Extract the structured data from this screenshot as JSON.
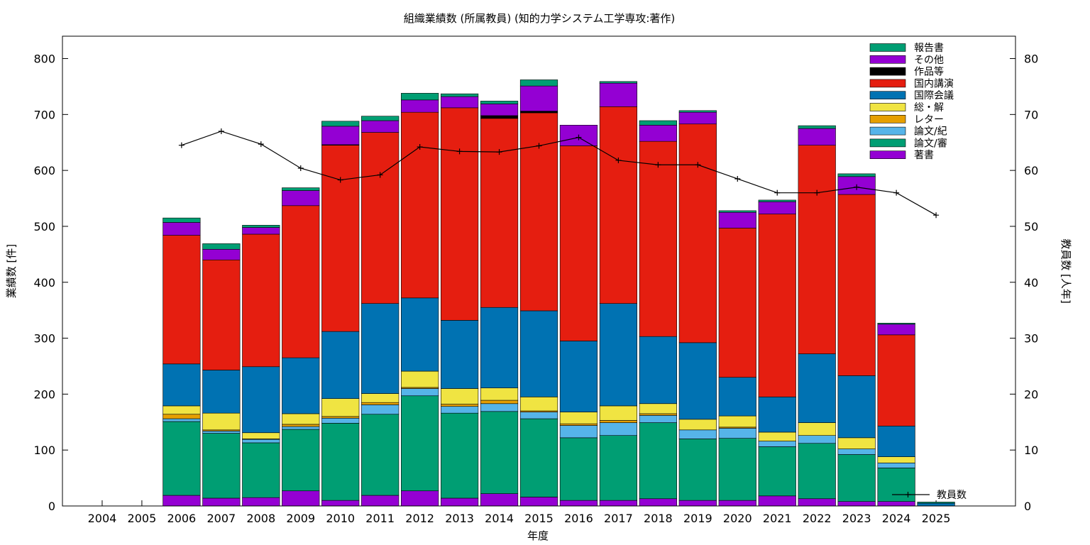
{
  "chart_data": {
    "type": "bar",
    "stacked": true,
    "title": "組織業績数 (所属教員) (知的力学システム工学専攻:著作)",
    "xlabel": "年度",
    "ylabel": "業績数 [件]",
    "y2label": "教員数 [人年]",
    "ylim": [
      0,
      840
    ],
    "y2lim": [
      0,
      84
    ],
    "yticks": [
      0,
      100,
      200,
      300,
      400,
      500,
      600,
      700,
      800
    ],
    "y2ticks": [
      0,
      10,
      20,
      30,
      40,
      50,
      60,
      70,
      80
    ],
    "categories": [
      "2004",
      "2005",
      "2006",
      "2007",
      "2008",
      "2009",
      "2010",
      "2011",
      "2012",
      "2013",
      "2014",
      "2015",
      "2016",
      "2017",
      "2018",
      "2019",
      "2020",
      "2021",
      "2022",
      "2023",
      "2024",
      "2025"
    ],
    "legend_position": "top-right",
    "series": [
      {
        "name": "著書",
        "color": "#9400d3",
        "values": [
          0,
          0,
          19,
          14,
          15,
          27,
          10,
          19,
          27,
          14,
          22,
          16,
          10,
          10,
          13,
          10,
          10,
          18,
          13,
          8,
          8,
          0
        ]
      },
      {
        "name": "論文/審",
        "color": "#009e73",
        "values": [
          0,
          0,
          132,
          116,
          98,
          110,
          138,
          145,
          170,
          152,
          147,
          140,
          112,
          116,
          136,
          110,
          111,
          88,
          99,
          84,
          60,
          0
        ]
      },
      {
        "name": "論文/紀",
        "color": "#56b4e9",
        "values": [
          0,
          0,
          5,
          4,
          6,
          5,
          9,
          17,
          13,
          12,
          14,
          12,
          22,
          23,
          13,
          16,
          18,
          10,
          14,
          10,
          9,
          0
        ]
      },
      {
        "name": "レター",
        "color": "#e69f00",
        "values": [
          0,
          0,
          8,
          2,
          1,
          4,
          3,
          4,
          2,
          4,
          6,
          2,
          3,
          4,
          3,
          0,
          2,
          0,
          0,
          0,
          0,
          0
        ]
      },
      {
        "name": "総・解",
        "color": "#f0e442",
        "values": [
          0,
          0,
          15,
          30,
          11,
          19,
          32,
          16,
          29,
          28,
          22,
          25,
          21,
          26,
          18,
          19,
          20,
          16,
          23,
          20,
          11,
          0
        ]
      },
      {
        "name": "国際会議",
        "color": "#0072b2",
        "values": [
          0,
          0,
          75,
          77,
          118,
          100,
          120,
          161,
          131,
          122,
          144,
          154,
          127,
          183,
          120,
          137,
          69,
          63,
          123,
          111,
          55,
          5
        ]
      },
      {
        "name": "国内講演",
        "color": "#e51e10",
        "values": [
          0,
          0,
          230,
          197,
          237,
          272,
          333,
          306,
          332,
          380,
          338,
          354,
          349,
          352,
          349,
          391,
          267,
          327,
          373,
          324,
          163,
          0
        ]
      },
      {
        "name": "作品等",
        "color": "#000000",
        "values": [
          0,
          0,
          0,
          0,
          0,
          0,
          1,
          0,
          0,
          0,
          5,
          3,
          0,
          0,
          0,
          0,
          0,
          0,
          0,
          0,
          0,
          0
        ]
      },
      {
        "name": "その他",
        "color": "#9400d3",
        "values": [
          0,
          0,
          23,
          19,
          12,
          27,
          33,
          21,
          22,
          20,
          21,
          45,
          37,
          42,
          29,
          21,
          28,
          22,
          30,
          32,
          19,
          0
        ]
      },
      {
        "name": "報告書",
        "color": "#009e73",
        "values": [
          0,
          0,
          8,
          10,
          4,
          5,
          9,
          8,
          12,
          5,
          5,
          11,
          0,
          3,
          8,
          3,
          3,
          3,
          5,
          5,
          2,
          2
        ]
      }
    ],
    "line_series": {
      "name": "教員数",
      "axis": "y2",
      "color": "#000000",
      "x_start": "2006",
      "values": [
        64.5,
        67.0,
        64.7,
        60.4,
        58.3,
        59.2,
        64.2,
        63.4,
        63.3,
        64.4,
        65.9,
        61.8,
        61.0,
        61.0,
        58.5,
        56.0,
        56.0,
        57.0,
        56.0,
        52.0
      ]
    }
  }
}
